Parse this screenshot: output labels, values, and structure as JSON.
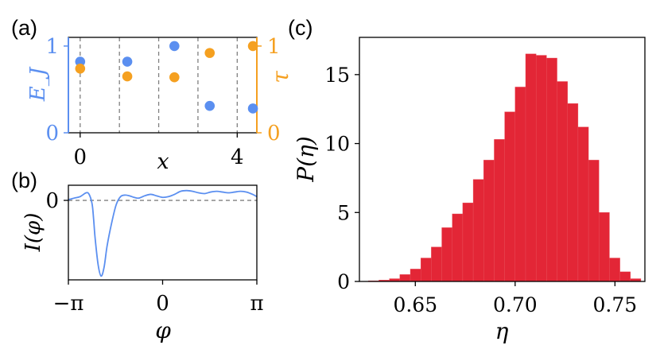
{
  "colors": {
    "blue": "#5b8ff0",
    "orange": "#f5a020",
    "bar": "#e32636",
    "dash": "#808080",
    "axis": "#000000"
  },
  "chart_data": [
    {
      "panel": "(a)",
      "type": "scatter",
      "xlabel": "x",
      "ylabel_left": "E_J",
      "ylabel_right": "τ",
      "xlim": [
        -0.3,
        4.5
      ],
      "ylim": [
        0,
        1.1
      ],
      "xticks": [
        0,
        4
      ],
      "xtick_labels": [
        "0",
        "4"
      ],
      "yticks_left": [
        0,
        1
      ],
      "ytick_labels_left": [
        "0",
        "1"
      ],
      "yticks_right": [
        0,
        1
      ],
      "ytick_labels_right": [
        "0",
        "1"
      ],
      "dashed_vlines": [
        0,
        1,
        2,
        3,
        4
      ],
      "series": [
        {
          "name": "E_J",
          "axis": "left",
          "color": "blue",
          "x": [
            0,
            1.2,
            2.4,
            3.3,
            4.4
          ],
          "y": [
            0.82,
            0.82,
            1.0,
            0.31,
            0.28
          ]
        },
        {
          "name": "τ",
          "axis": "right",
          "color": "orange",
          "x": [
            0,
            1.2,
            2.4,
            3.3,
            4.4
          ],
          "y": [
            0.74,
            0.65,
            0.64,
            0.92,
            1.0
          ]
        }
      ]
    },
    {
      "panel": "(b)",
      "type": "line",
      "xlabel": "φ",
      "ylabel": "I(φ)",
      "xlim": [
        -3.14159,
        3.14159
      ],
      "ylim": [
        -1.05,
        0.2
      ],
      "xticks": [
        -3.14159,
        0,
        3.14159
      ],
      "xtick_labels": [
        "−π",
        "0",
        "π"
      ],
      "yticks": [
        0
      ],
      "ytick_labels": [
        "0"
      ],
      "dashed_hline": 0,
      "series": [
        {
          "name": "I(φ)",
          "color": "blue",
          "x": [
            -3.14,
            -2.95,
            -2.75,
            -2.55,
            -2.45,
            -2.35,
            -2.3,
            -2.25,
            -2.15,
            -2.05,
            -1.95,
            -1.85,
            -1.7,
            -1.55,
            -1.4,
            -1.25,
            -1.1,
            -0.95,
            -0.8,
            -0.6,
            -0.4,
            -0.2,
            0.0,
            0.2,
            0.4,
            0.6,
            0.8,
            1.0,
            1.2,
            1.4,
            1.6,
            1.8,
            2.0,
            2.2,
            2.4,
            2.6,
            2.8,
            3.0,
            3.14
          ],
          "y": [
            0.01,
            0.03,
            0.05,
            0.1,
            0.08,
            -0.05,
            -0.25,
            -0.5,
            -0.85,
            -1.0,
            -0.88,
            -0.6,
            -0.3,
            -0.06,
            0.05,
            0.07,
            0.06,
            0.04,
            0.03,
            0.06,
            0.08,
            0.06,
            0.04,
            0.05,
            0.08,
            0.12,
            0.13,
            0.12,
            0.1,
            0.09,
            0.11,
            0.12,
            0.11,
            0.1,
            0.11,
            0.12,
            0.11,
            0.08,
            0.05
          ]
        }
      ]
    },
    {
      "panel": "(c)",
      "type": "bar",
      "subtype": "histogram",
      "xlabel": "η",
      "ylabel": "P(η)",
      "xlim": [
        0.622,
        0.765
      ],
      "ylim": [
        0,
        17.7
      ],
      "xticks": [
        0.65,
        0.7,
        0.75
      ],
      "xtick_labels": [
        "0.65",
        "0.70",
        "0.75"
      ],
      "yticks": [
        0,
        5,
        10,
        15
      ],
      "ytick_labels": [
        "0",
        "5",
        "10",
        "15"
      ],
      "bin_width": 0.00525,
      "bin_left_edges": [
        0.6265,
        0.63175,
        0.637,
        0.64225,
        0.6475,
        0.65275,
        0.658,
        0.66325,
        0.6685,
        0.67375,
        0.679,
        0.68425,
        0.6895,
        0.69475,
        0.7,
        0.70525,
        0.7105,
        0.71575,
        0.721,
        0.72625,
        0.7315,
        0.73675,
        0.742,
        0.74725,
        0.7525,
        0.75775
      ],
      "values": [
        0.05,
        0.1,
        0.2,
        0.5,
        0.9,
        1.7,
        2.5,
        3.9,
        4.9,
        5.7,
        7.4,
        8.8,
        10.3,
        12.3,
        14.1,
        16.5,
        16.4,
        16.2,
        14.5,
        12.9,
        11.2,
        8.8,
        5.0,
        1.7,
        0.7,
        0.2
      ]
    }
  ]
}
